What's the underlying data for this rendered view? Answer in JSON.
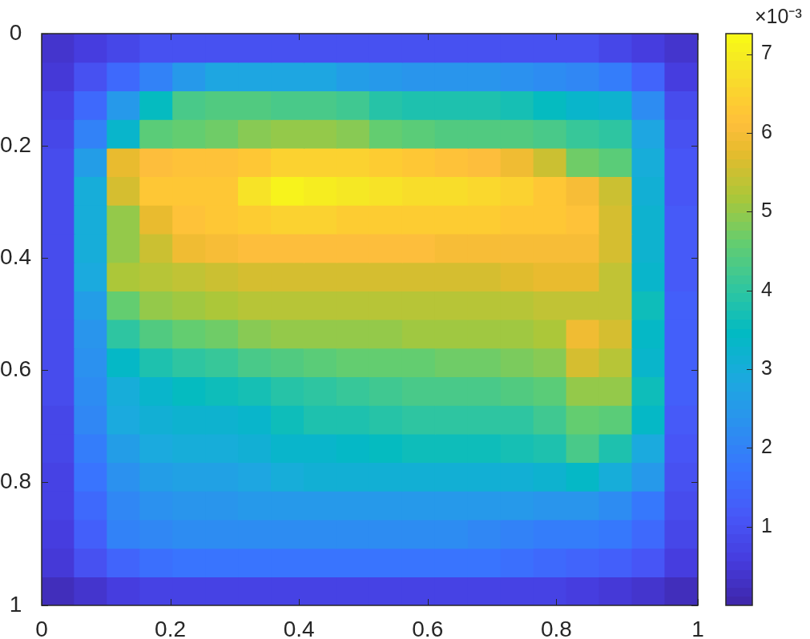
{
  "chart_data": {
    "type": "heatmap",
    "x": [
      0.0255,
      0.0765,
      0.1275,
      0.1785,
      0.2295,
      0.2805,
      0.3315,
      0.3825,
      0.4335,
      0.4845,
      0.5355,
      0.5865,
      0.6375,
      0.6885,
      0.7395,
      0.7905,
      0.8415,
      0.8925,
      0.9435,
      0.9945
    ],
    "y": [
      0.0255,
      0.0765,
      0.1275,
      0.1785,
      0.2295,
      0.2805,
      0.3315,
      0.3825,
      0.4335,
      0.4845,
      0.5355,
      0.5865,
      0.6375,
      0.6885,
      0.7395,
      0.7905,
      0.8415,
      0.8925,
      0.9435,
      0.9945
    ],
    "cells": [
      [
        0.4,
        0.6,
        0.8,
        1.0,
        1.0,
        1.0,
        1.0,
        1.0,
        1.0,
        1.0,
        1.0,
        1.0,
        1.0,
        1.0,
        1.0,
        1.0,
        1.0,
        0.8,
        0.6,
        0.4
      ],
      [
        0.5,
        1.0,
        1.5,
        2.0,
        2.5,
        2.8,
        2.8,
        2.8,
        2.8,
        2.6,
        2.5,
        2.4,
        2.4,
        2.4,
        2.3,
        2.2,
        2.1,
        1.9,
        1.4,
        0.6
      ],
      [
        0.7,
        1.5,
        2.5,
        3.5,
        4.3,
        4.4,
        4.4,
        4.3,
        4.3,
        4.2,
        3.9,
        3.8,
        3.8,
        3.8,
        3.7,
        3.5,
        3.3,
        3.2,
        2.2,
        0.9
      ],
      [
        0.8,
        2.0,
        3.3,
        4.5,
        4.6,
        4.7,
        4.9,
        5.0,
        5.0,
        4.9,
        4.6,
        4.5,
        4.4,
        4.4,
        4.4,
        4.3,
        4.1,
        4.0,
        2.8,
        1.0
      ],
      [
        0.9,
        2.6,
        5.8,
        6.1,
        6.2,
        6.2,
        6.3,
        6.5,
        6.5,
        6.5,
        6.4,
        6.3,
        6.2,
        6.1,
        5.9,
        5.5,
        4.7,
        4.5,
        3.0,
        1.1
      ],
      [
        0.9,
        3.0,
        5.6,
        6.3,
        6.3,
        6.3,
        6.8,
        7.1,
        7.0,
        6.9,
        6.8,
        6.7,
        6.7,
        6.6,
        6.5,
        6.3,
        6.0,
        5.5,
        3.1,
        1.1
      ],
      [
        0.9,
        3.0,
        5.0,
        5.8,
        6.2,
        6.3,
        6.4,
        6.5,
        6.5,
        6.4,
        6.4,
        6.4,
        6.4,
        6.4,
        6.3,
        6.3,
        6.2,
        5.6,
        3.2,
        1.2
      ],
      [
        0.9,
        3.0,
        5.0,
        5.5,
        5.9,
        6.0,
        6.1,
        6.1,
        6.1,
        6.1,
        6.1,
        6.1,
        6.0,
        6.0,
        6.0,
        6.0,
        6.0,
        5.6,
        3.2,
        1.2
      ],
      [
        0.9,
        2.9,
        5.2,
        5.3,
        5.4,
        5.5,
        5.6,
        5.6,
        5.6,
        5.6,
        5.6,
        5.6,
        5.6,
        5.6,
        5.7,
        5.8,
        5.8,
        5.4,
        3.3,
        1.2
      ],
      [
        0.9,
        2.6,
        4.6,
        5.0,
        5.1,
        5.2,
        5.3,
        5.3,
        5.3,
        5.3,
        5.3,
        5.3,
        5.3,
        5.3,
        5.3,
        5.4,
        5.4,
        5.4,
        3.6,
        1.3
      ],
      [
        0.9,
        2.4,
        4.0,
        4.4,
        4.6,
        4.7,
        4.9,
        5.0,
        5.0,
        5.0,
        5.0,
        5.1,
        5.1,
        5.1,
        5.1,
        5.2,
        5.9,
        5.6,
        3.4,
        1.3
      ],
      [
        0.9,
        2.3,
        3.4,
        3.8,
        4.0,
        4.1,
        4.3,
        4.4,
        4.5,
        4.6,
        4.6,
        4.6,
        4.7,
        4.7,
        4.8,
        4.9,
        5.6,
        5.3,
        3.3,
        1.3
      ],
      [
        0.9,
        2.2,
        3.0,
        3.3,
        3.5,
        3.6,
        3.7,
        3.9,
        4.0,
        4.1,
        4.2,
        4.3,
        4.3,
        4.3,
        4.4,
        4.5,
        5.0,
        5.0,
        3.6,
        1.3
      ],
      [
        0.8,
        2.1,
        2.9,
        3.1,
        3.2,
        3.2,
        3.3,
        3.6,
        3.8,
        3.8,
        3.9,
        4.0,
        4.0,
        4.0,
        4.0,
        4.2,
        4.6,
        4.5,
        3.4,
        1.2
      ],
      [
        0.8,
        1.9,
        2.6,
        2.9,
        3.0,
        3.0,
        3.1,
        3.3,
        3.3,
        3.4,
        3.5,
        3.6,
        3.6,
        3.6,
        3.7,
        3.8,
        4.3,
        3.8,
        2.9,
        1.1
      ],
      [
        0.7,
        1.7,
        2.3,
        2.6,
        2.7,
        2.7,
        2.8,
        3.0,
        3.1,
        3.1,
        3.1,
        3.1,
        3.1,
        3.1,
        3.1,
        3.2,
        3.4,
        3.0,
        2.5,
        1.0
      ],
      [
        0.7,
        1.5,
        2.1,
        2.3,
        2.4,
        2.4,
        2.5,
        2.5,
        2.5,
        2.5,
        2.5,
        2.5,
        2.5,
        2.5,
        2.5,
        2.4,
        2.4,
        2.2,
        1.8,
        0.9
      ],
      [
        0.6,
        1.3,
        2.0,
        2.1,
        2.2,
        2.2,
        2.2,
        2.2,
        2.2,
        2.2,
        2.2,
        2.2,
        2.2,
        2.1,
        2.0,
        1.9,
        1.9,
        1.8,
        1.5,
        0.8
      ],
      [
        0.5,
        1.0,
        1.4,
        1.6,
        1.7,
        1.7,
        1.7,
        1.7,
        1.7,
        1.7,
        1.7,
        1.7,
        1.7,
        1.7,
        1.6,
        1.5,
        1.4,
        1.3,
        1.1,
        0.6
      ],
      [
        0.2,
        0.4,
        0.6,
        0.7,
        0.7,
        0.7,
        0.7,
        0.7,
        0.7,
        0.7,
        0.7,
        0.7,
        0.7,
        0.7,
        0.7,
        0.7,
        0.6,
        0.5,
        0.4,
        0.2
      ]
    ],
    "xlim": [
      0,
      1.02
    ],
    "xticks": [
      0,
      0.2,
      0.4,
      0.6,
      0.8,
      {
        "value": 1.02,
        "label": "1"
      }
    ],
    "ylim": [
      1.02,
      0
    ],
    "yticks": [
      0,
      0.2,
      0.4,
      0.6,
      0.8,
      {
        "value": 1.02,
        "label": "1"
      }
    ],
    "clim": [
      0,
      7.26
    ],
    "cticks": [
      1,
      2,
      3,
      4,
      5,
      6,
      7
    ],
    "clabel": "×10⁻³"
  }
}
